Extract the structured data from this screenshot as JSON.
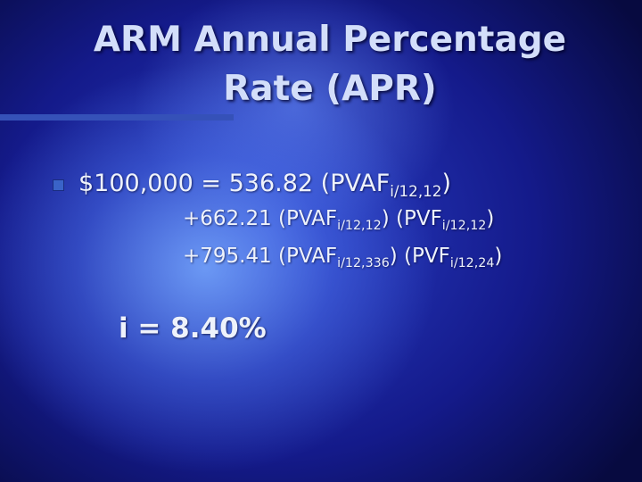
{
  "title": [
    "ARM Annual Percentage",
    "Rate (APR)"
  ],
  "equation": [
    [
      {
        "text": "$100,000 = 536.82 (PVAF"
      },
      {
        "sub": "i/12,12"
      },
      {
        "text": ")"
      }
    ],
    [
      {
        "text": "+662.21 (PVAF"
      },
      {
        "sub": "i/12,12"
      },
      {
        "text": ") (PVF"
      },
      {
        "sub": "i/12,12"
      },
      {
        "text": ")"
      }
    ],
    [
      {
        "text": "+795.41 (PVAF"
      },
      {
        "sub": "i/12,336"
      },
      {
        "text": ") (PVF"
      },
      {
        "sub": "i/12,24"
      },
      {
        "text": ")"
      }
    ]
  ],
  "result": "i = 8.40%"
}
